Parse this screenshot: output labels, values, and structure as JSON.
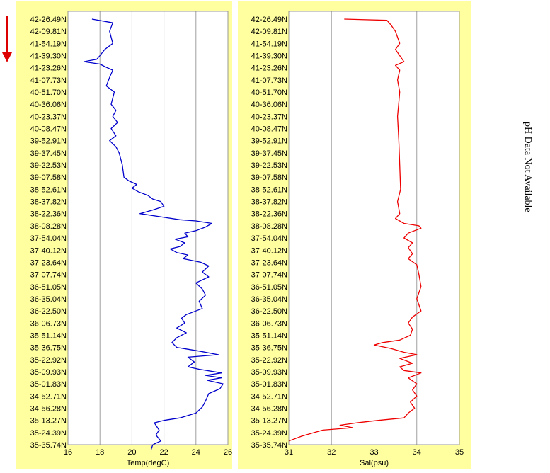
{
  "side_note": "pH Data Not Available",
  "colors": {
    "panel_bg": "#ffffa0",
    "plot_bg": "#ffffff",
    "grid": "#a0a0a0",
    "temp_line": "#0000cc",
    "sal_line": "#ee0000",
    "arrow": "#dd0000"
  },
  "indicator": {
    "icon": "down-arrow-icon"
  },
  "chart_data": [
    {
      "type": "line",
      "xlabel": "Temp(degC)",
      "xlim": [
        16,
        26
      ],
      "xticks": [
        "16",
        "18",
        "20",
        "22",
        "24",
        "26"
      ],
      "grid": true,
      "latitude_labels": [
        "42-26.49N",
        "42-09.81N",
        "41-54.19N",
        "41-39.30N",
        "41-23.26N",
        "41-07.73N",
        "40-51.70N",
        "40-36.06N",
        "40-23.37N",
        "40-08.47N",
        "39-52.91N",
        "39-37.45N",
        "39-22.53N",
        "39-07.58N",
        "38-52.61N",
        "38-37.82N",
        "38-22.36N",
        "38-08.28N",
        "37-54.04N",
        "37-40.12N",
        "37-23.64N",
        "37-07.74N",
        "36-51.05N",
        "36-35.04N",
        "36-22.50N",
        "36-06.73N",
        "35-51.14N",
        "35-36.75N",
        "35-22.92N",
        "35-09.93N",
        "35-01.83N",
        "34-52.71N",
        "34-56.28N",
        "35-13.27N",
        "35-24.39N",
        "35-35.74N"
      ],
      "series": [
        {
          "values": [
            [
              17.5,
              0
            ],
            [
              18.8,
              0.3
            ],
            [
              18.6,
              1
            ],
            [
              18.8,
              2
            ],
            [
              18.3,
              2.5
            ],
            [
              18.0,
              3
            ],
            [
              17.8,
              3.3
            ],
            [
              17.0,
              3.5
            ],
            [
              18.0,
              3.7
            ],
            [
              18.3,
              3.9
            ],
            [
              18.8,
              4.2
            ],
            [
              18.6,
              4.8
            ],
            [
              18.4,
              5.5
            ],
            [
              18.9,
              6
            ],
            [
              18.7,
              7
            ],
            [
              19.0,
              7.5
            ],
            [
              18.8,
              8
            ],
            [
              19.1,
              8.5
            ],
            [
              18.7,
              9
            ],
            [
              19.0,
              9.6
            ],
            [
              18.6,
              10
            ],
            [
              19.0,
              10.5
            ],
            [
              19.2,
              11
            ],
            [
              19.4,
              12
            ],
            [
              19.5,
              13
            ],
            [
              19.8,
              13.3
            ],
            [
              20.3,
              13.6
            ],
            [
              20.0,
              13.9
            ],
            [
              20.4,
              14.2
            ],
            [
              21.0,
              14.5
            ],
            [
              21.3,
              14.8
            ],
            [
              21.8,
              15
            ],
            [
              22.0,
              15.4
            ],
            [
              21.3,
              15.7
            ],
            [
              20.5,
              16
            ],
            [
              22.0,
              16.3
            ],
            [
              23.0,
              16.5
            ],
            [
              24.0,
              16.6
            ],
            [
              25.0,
              16.8
            ],
            [
              24.6,
              17.1
            ],
            [
              24.0,
              17.4
            ],
            [
              23.3,
              17.6
            ],
            [
              23.5,
              17.9
            ],
            [
              22.7,
              18.1
            ],
            [
              23.3,
              18.4
            ],
            [
              23.0,
              18.7
            ],
            [
              22.4,
              18.9
            ],
            [
              22.8,
              19.2
            ],
            [
              23.5,
              19.4
            ],
            [
              23.2,
              19.7
            ],
            [
              24.3,
              20
            ],
            [
              24.8,
              20.3
            ],
            [
              24.4,
              20.8
            ],
            [
              24.8,
              21.2
            ],
            [
              24.0,
              21.7
            ],
            [
              24.4,
              22.2
            ],
            [
              24.6,
              22.7
            ],
            [
              24.2,
              23.2
            ],
            [
              24.4,
              23.8
            ],
            [
              23.4,
              24.3
            ],
            [
              23.1,
              24.6
            ],
            [
              23.3,
              25
            ],
            [
              22.8,
              25.4
            ],
            [
              23.4,
              25.8
            ],
            [
              22.8,
              26.2
            ],
            [
              22.5,
              26.6
            ],
            [
              22.8,
              27
            ],
            [
              24.2,
              27.3
            ],
            [
              25.4,
              27.6
            ],
            [
              23.5,
              27.8
            ],
            [
              23.9,
              28.2
            ],
            [
              23.5,
              28.6
            ],
            [
              24.2,
              28.8
            ],
            [
              25.6,
              29.1
            ],
            [
              24.6,
              29.3
            ],
            [
              25.6,
              29.5
            ],
            [
              24.7,
              29.7
            ],
            [
              25.7,
              30
            ],
            [
              25.5,
              30.4
            ],
            [
              24.8,
              30.8
            ],
            [
              24.6,
              31.4
            ],
            [
              24.4,
              31.9
            ],
            [
              24.0,
              32.4
            ],
            [
              23.0,
              32.8
            ],
            [
              22.0,
              33
            ],
            [
              21.4,
              33.2
            ],
            [
              21.7,
              33.8
            ],
            [
              21.5,
              34.2
            ],
            [
              21.8,
              34.7
            ],
            [
              21.3,
              35
            ],
            [
              21.2,
              35.4
            ]
          ]
        }
      ]
    },
    {
      "type": "line",
      "xlabel": "Sal(psu)",
      "xlim": [
        31,
        35
      ],
      "xticks": [
        "31",
        "32",
        "33",
        "34",
        "35"
      ],
      "grid": true,
      "latitude_labels": [
        "42-26.49N",
        "42-09.81N",
        "41-54.19N",
        "41-39.30N",
        "41-23.26N",
        "41-07.73N",
        "40-51.70N",
        "40-36.06N",
        "40-23.37N",
        "40-08.47N",
        "39-52.91N",
        "39-37.45N",
        "39-22.53N",
        "39-07.58N",
        "38-52.61N",
        "38-37.82N",
        "38-22.36N",
        "38-08.28N",
        "37-54.04N",
        "37-40.12N",
        "37-23.64N",
        "37-07.74N",
        "36-51.05N",
        "36-35.04N",
        "36-22.50N",
        "36-06.73N",
        "35-51.14N",
        "35-36.75N",
        "35-22.92N",
        "35-09.93N",
        "35-01.83N",
        "34-52.71N",
        "34-56.28N",
        "35-13.27N",
        "35-24.39N",
        "35-35.74N"
      ],
      "series": [
        {
          "values": [
            [
              32.3,
              0
            ],
            [
              33.3,
              0.1
            ],
            [
              33.4,
              0.5
            ],
            [
              33.5,
              1
            ],
            [
              33.6,
              2
            ],
            [
              33.5,
              2.5
            ],
            [
              33.6,
              3
            ],
            [
              33.7,
              3.5
            ],
            [
              33.5,
              3.8
            ],
            [
              33.6,
              4.2
            ],
            [
              33.55,
              5
            ],
            [
              33.6,
              6
            ],
            [
              33.55,
              8
            ],
            [
              33.58,
              10
            ],
            [
              33.6,
              12
            ],
            [
              33.62,
              14
            ],
            [
              33.55,
              15
            ],
            [
              33.6,
              16
            ],
            [
              33.5,
              16.4
            ],
            [
              33.7,
              16.8
            ],
            [
              34.05,
              17
            ],
            [
              34.1,
              17.2
            ],
            [
              33.8,
              17.6
            ],
            [
              33.7,
              18
            ],
            [
              33.9,
              18.4
            ],
            [
              33.8,
              18.8
            ],
            [
              33.9,
              19.3
            ],
            [
              33.8,
              19.7
            ],
            [
              34.0,
              20.2
            ],
            [
              34.05,
              21
            ],
            [
              34.1,
              22
            ],
            [
              34.0,
              23
            ],
            [
              34.1,
              24
            ],
            [
              33.9,
              24.5
            ],
            [
              33.8,
              25
            ],
            [
              33.9,
              25.5
            ],
            [
              33.85,
              26
            ],
            [
              33.6,
              26.4
            ],
            [
              33.2,
              26.6
            ],
            [
              33.0,
              26.8
            ],
            [
              33.4,
              27.1
            ],
            [
              33.7,
              27.4
            ],
            [
              34.0,
              27.6
            ],
            [
              33.6,
              27.9
            ],
            [
              33.9,
              28.3
            ],
            [
              33.6,
              28.6
            ],
            [
              33.7,
              28.9
            ],
            [
              34.1,
              29.1
            ],
            [
              33.8,
              29.5
            ],
            [
              34.0,
              30
            ],
            [
              33.9,
              30.5
            ],
            [
              34.0,
              31
            ],
            [
              33.85,
              31.5
            ],
            [
              33.95,
              32
            ],
            [
              33.8,
              32.4
            ],
            [
              33.7,
              32.8
            ],
            [
              33.1,
              33
            ],
            [
              32.6,
              33.2
            ],
            [
              32.2,
              33.4
            ],
            [
              32.5,
              33.6
            ],
            [
              31.8,
              33.8
            ],
            [
              31.6,
              34
            ],
            [
              31.3,
              34.3
            ],
            [
              31.0,
              34.7
            ]
          ]
        }
      ]
    }
  ]
}
